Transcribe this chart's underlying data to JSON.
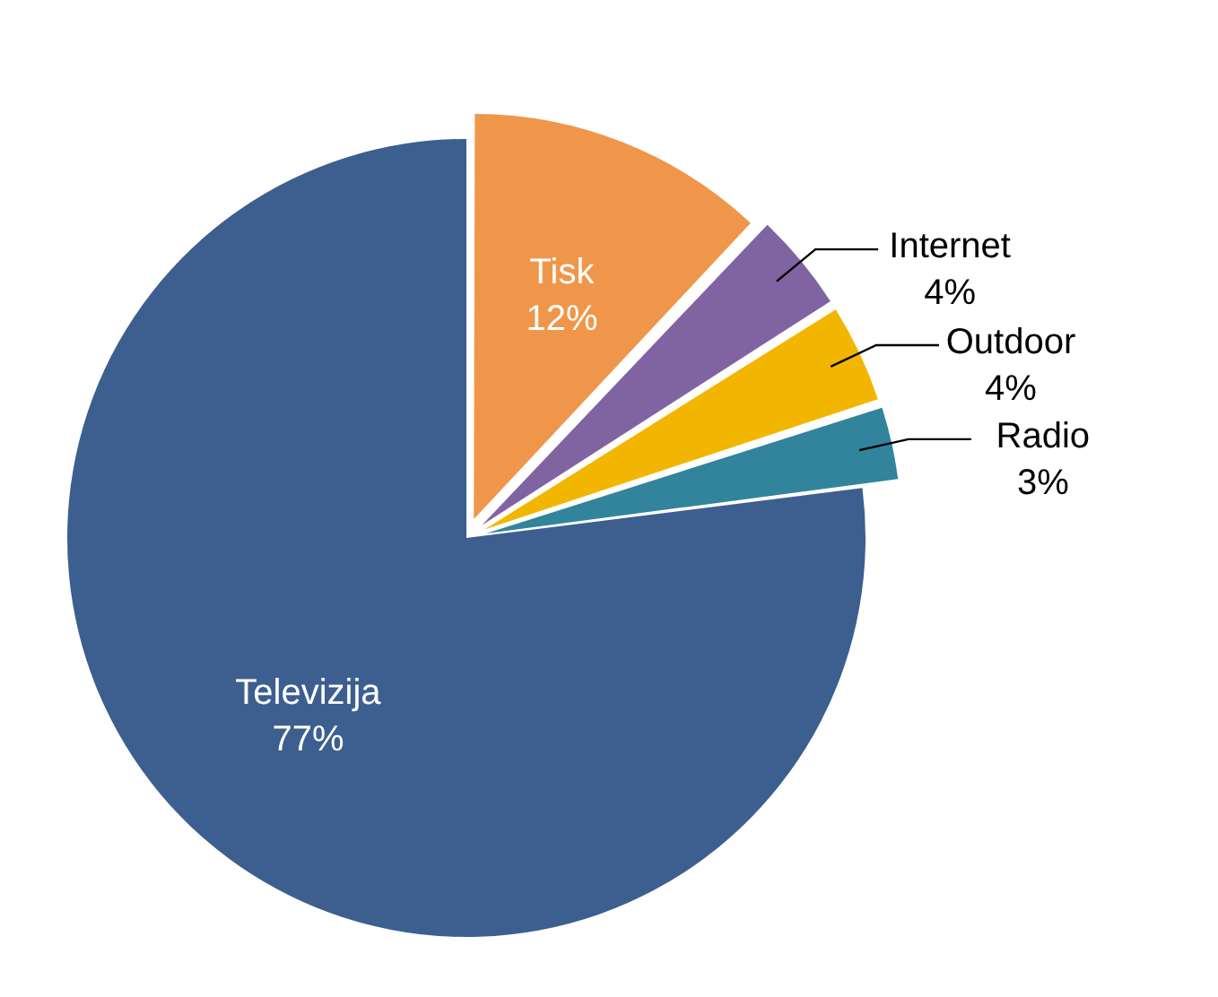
{
  "chart_data": {
    "type": "pie",
    "categories": [
      "Tisk",
      "Internet",
      "Outdoor",
      "Radio",
      "Televizija"
    ],
    "values": [
      12,
      4,
      4,
      3,
      77
    ],
    "value_labels": [
      "12%",
      "4%",
      "4%",
      "3%",
      "77%"
    ],
    "colors": [
      "#f0964a",
      "#8064a2",
      "#f2b600",
      "#31849b",
      "#3c5f8f"
    ],
    "legend": false
  }
}
